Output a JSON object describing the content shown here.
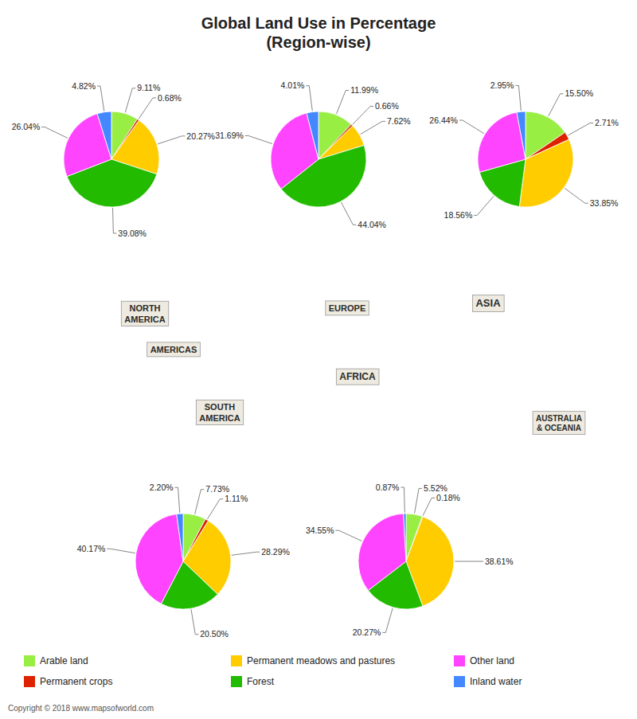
{
  "chart_data": [
    {
      "type": "pie",
      "title": "Global Land Use in Percentage\n(Region-wise)",
      "categories": [
        "Arable land",
        "Permanent crops",
        "Permanent meadows and pastures",
        "Forest",
        "Other land",
        "Inland water"
      ],
      "values": [
        9.11,
        0.68,
        20.27,
        39.08,
        26.04,
        4.82
      ],
      "value_labels": [
        "9.11%",
        "0.68%",
        "20.27%",
        "39.08%",
        "26.04%",
        "4.82%"
      ],
      "colors": [
        "#99ee44",
        "#dd2200",
        "#ffcc00",
        "#22bb00",
        "#ff44ff",
        "#4488ff"
      ],
      "data_labels": true,
      "legend": "bottom",
      "annotations": [
        "NORTH\nAMERICA",
        "SOUTH\nAMERICA",
        "EUROPE",
        "AFRICA",
        "ASIA",
        "AUSTRALIA\n& OCEANIA",
        "AMERICAS",
        "Copyright © 2018 www.mapsofworld.com"
      ]
    },
    {
      "type": "pie",
      "categories": [
        "Arable land",
        "Permanent crops",
        "Permanent meadows and pastures",
        "Forest",
        "Other land",
        "Inland water"
      ],
      "values": [
        11.99,
        0.66,
        7.62,
        44.04,
        31.69,
        4.01
      ],
      "value_labels": [
        "11.99%",
        "0.66%",
        "7.62%",
        "44.04%",
        "31.69%",
        "4.01%"
      ],
      "colors": [
        "#99ee44",
        "#dd2200",
        "#ffcc00",
        "#22bb00",
        "#ff44ff",
        "#4488ff"
      ],
      "data_labels": true
    },
    {
      "type": "pie",
      "categories": [
        "Arable land",
        "Permanent crops",
        "Permanent meadows and pastures",
        "Forest",
        "Other land",
        "Inland water"
      ],
      "values": [
        15.5,
        2.71,
        33.85,
        18.56,
        26.44,
        2.95
      ],
      "value_labels": [
        "15.50%",
        "2.71%",
        "33.85%",
        "18.56%",
        "26.44%",
        "2.95%"
      ],
      "colors": [
        "#99ee44",
        "#dd2200",
        "#ffcc00",
        "#22bb00",
        "#ff44ff",
        "#4488ff"
      ],
      "data_labels": true
    },
    {
      "type": "pie",
      "categories": [
        "Arable land",
        "Permanent crops",
        "Permanent meadows and pastures",
        "Forest",
        "Other land",
        "Inland water"
      ],
      "values": [
        7.73,
        1.11,
        28.29,
        20.5,
        40.17,
        2.2
      ],
      "value_labels": [
        "7.73%",
        "1.11%",
        "28.29%",
        "20.50%",
        "40.17%",
        "2.20%"
      ],
      "colors": [
        "#99ee44",
        "#dd2200",
        "#ffcc00",
        "#22bb00",
        "#ff44ff",
        "#4488ff"
      ],
      "data_labels": true
    },
    {
      "type": "pie",
      "categories": [
        "Arable land",
        "Permanent crops",
        "Permanent meadows and pastures",
        "Forest",
        "Other land",
        "Inland water"
      ],
      "values": [
        5.52,
        0.18,
        38.61,
        20.27,
        34.55,
        0.87
      ],
      "value_labels": [
        "5.52%",
        "0.18%",
        "38.61%",
        "20.27%",
        "34.55%",
        "0.87%"
      ],
      "colors": [
        "#99ee44",
        "#dd2200",
        "#ffcc00",
        "#22bb00",
        "#ff44ff",
        "#4488ff"
      ],
      "data_labels": true
    }
  ]
}
